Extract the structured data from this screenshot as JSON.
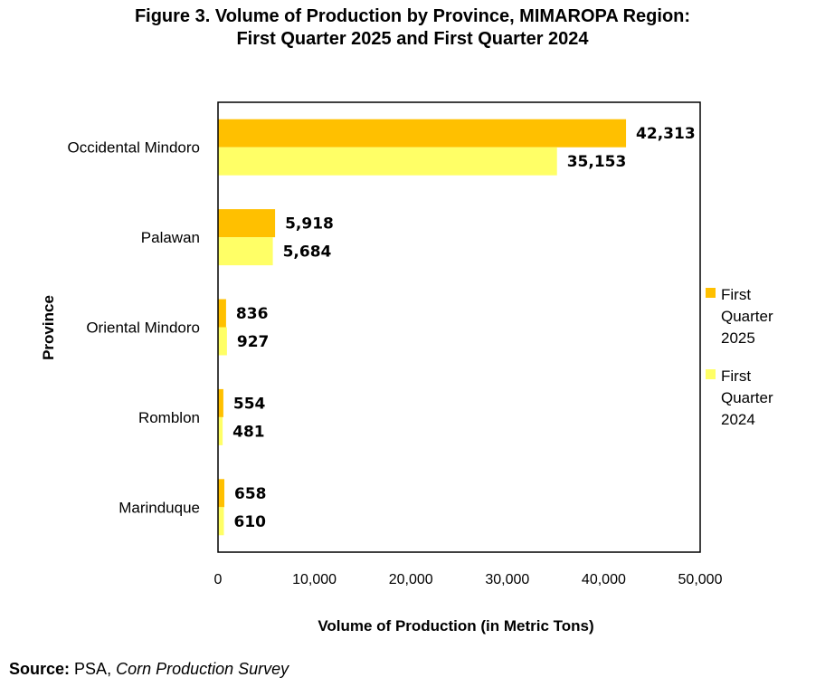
{
  "figure": {
    "title_line1": "Figure 3. Volume of Production by Province, MIMAROPA Region:",
    "title_line2": "First Quarter 2025 and First Quarter 2024"
  },
  "source": {
    "label": "Source:",
    "agency": "PSA, ",
    "survey": "Corn Production Survey"
  },
  "chart_data": {
    "type": "bar",
    "orientation": "horizontal",
    "title": "Figure 3. Volume of Production by Province, MIMAROPA Region: First Quarter 2025 and First Quarter 2024",
    "xlabel": "Volume of Production (in Metric Tons)",
    "ylabel": "Province",
    "xlim": [
      0,
      50000
    ],
    "x_ticks": [
      0,
      10000,
      20000,
      30000,
      40000,
      50000
    ],
    "x_tick_labels": [
      "0",
      "10,000",
      "20,000",
      "30,000",
      "40,000",
      "50,000"
    ],
    "grid": false,
    "legend_position": "right",
    "categories": [
      "Occidental Mindoro",
      "Palawan",
      "Oriental Mindoro",
      "Romblon",
      "Marinduque"
    ],
    "series": [
      {
        "name": "First Quarter 2025",
        "color": "#FFC000",
        "values": [
          42313,
          5918,
          836,
          554,
          658
        ],
        "labels": [
          "42,313",
          "5,918",
          "836",
          "554",
          "658"
        ]
      },
      {
        "name": "First Quarter 2024",
        "color": "#FFFF66",
        "values": [
          35153,
          5684,
          927,
          481,
          610
        ],
        "labels": [
          "35,153",
          "5,684",
          "927",
          "481",
          "610"
        ]
      }
    ]
  }
}
